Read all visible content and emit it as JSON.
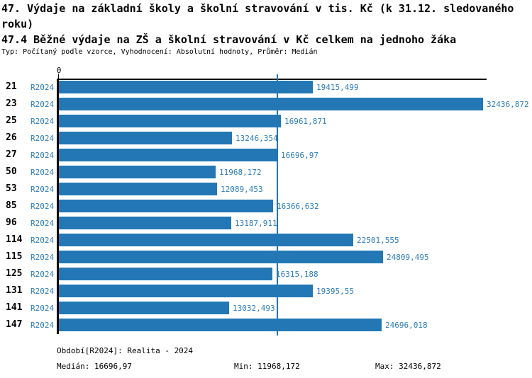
{
  "header": {
    "title_line1": "47. Výdaje na základní školy a školní stravování v tis. Kč (k 31.12. sledovaného",
    "title_line2": "roku)",
    "subtitle": "47.4 Běžné výdaje na ZŠ a školní stravování v Kč celkem na jednoho žáka",
    "meta": "Typ: Počítaný podle vzorce, Vyhodnocení: Absolutní hodnoty, Průměr: Medián"
  },
  "chart_data": {
    "type": "bar",
    "orientation": "horizontal",
    "title": "47.4 Běžné výdaje na ZŠ a školní stravování v Kč celkem na jednoho žáka",
    "categories": [
      "21",
      "23",
      "25",
      "26",
      "27",
      "50",
      "53",
      "85",
      "96",
      "114",
      "115",
      "125",
      "131",
      "141",
      "147"
    ],
    "series": [
      {
        "name": "R2024",
        "values": [
          19415.499,
          32436.872,
          16961.871,
          13246.354,
          16696.97,
          11968.172,
          12089.453,
          16366.632,
          13187.911,
          22501.555,
          24809.495,
          16315.188,
          19395.55,
          13032.493,
          24696.018
        ],
        "labels": [
          "19415,499",
          "32436,872",
          "16961,871",
          "13246,354",
          "16696,97",
          "11968,172",
          "12089,453",
          "16366,632",
          "13187,911",
          "22501,555",
          "24809,495",
          "16315,188",
          "19395,55",
          "13032,493",
          "24696,018"
        ]
      }
    ],
    "x_axis": {
      "ticks": [
        "0"
      ],
      "min": 0
    },
    "median_line": {
      "value": 16696.97
    },
    "grid": false,
    "legend_position": "none",
    "stats": {
      "median": 16696.97,
      "min": 11968.172,
      "max": 32436.872
    }
  },
  "footer": {
    "period_label": "Období[R2024]: Realita - 2024",
    "median_label": "Medián: 16696,97",
    "min_label": "Min: 11968,172",
    "max_label": "Max: 32436,872"
  },
  "colors": {
    "bar": "#2277b4",
    "blue_text": "#2d7dbb",
    "median_line": "#2277b4",
    "axis": "#000000"
  }
}
